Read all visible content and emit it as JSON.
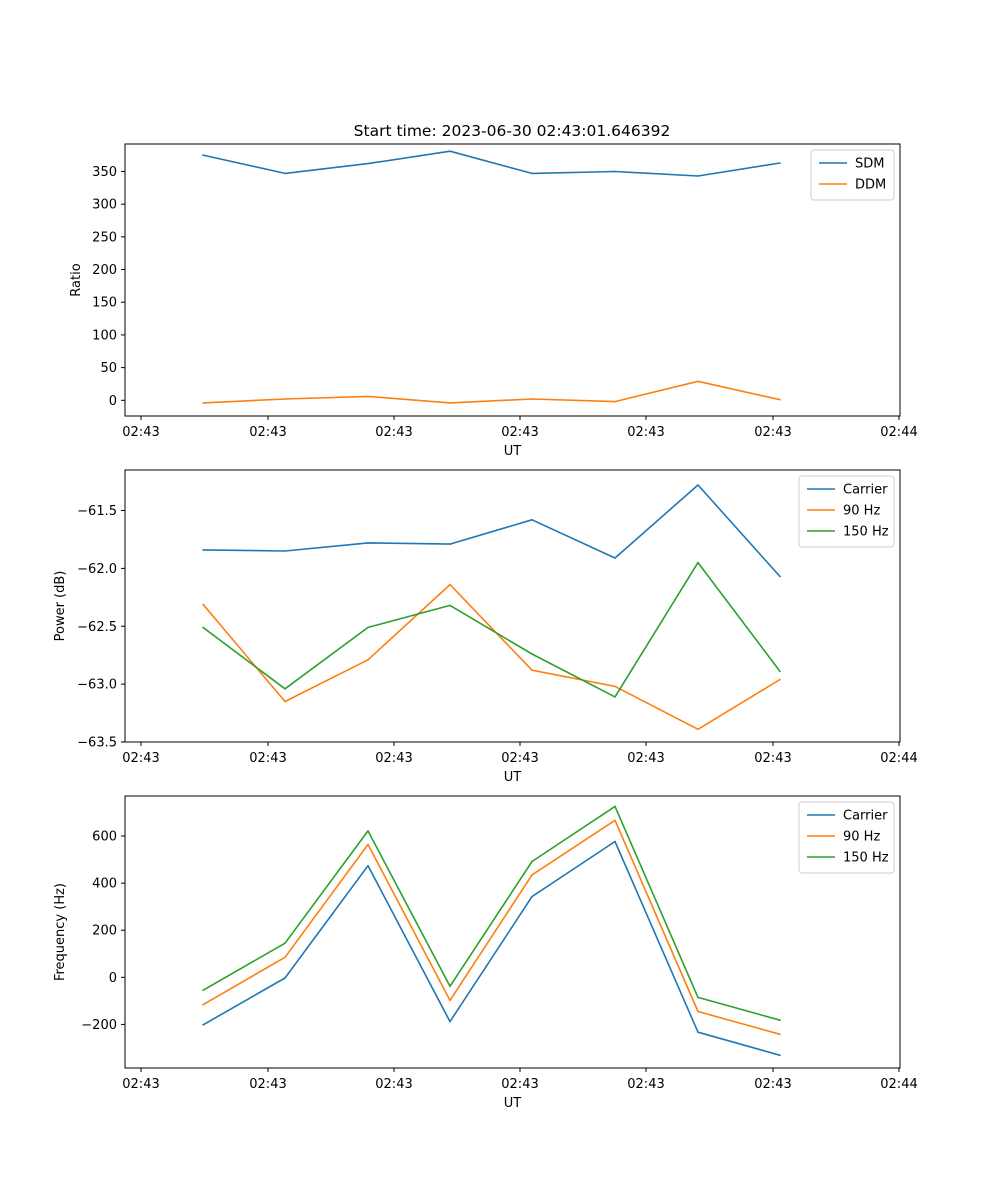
{
  "figure_title": "Start time: 2023-06-30 02:43:01.646392",
  "colors": {
    "blue": "#1f77b4",
    "orange": "#ff7f0e",
    "green": "#2ca02c"
  },
  "chart_data": [
    {
      "type": "line",
      "title": "Start time: 2023-06-30 02:43:01.646392",
      "xlabel": "UT",
      "ylabel": "Ratio",
      "xticks": [
        "02:43",
        "02:43",
        "02:43",
        "02:43",
        "02:43",
        "02:43",
        "02:43"
      ],
      "xticks_extra_right": "02:44",
      "yticks": [
        0,
        50,
        100,
        150,
        200,
        250,
        300,
        350
      ],
      "ylim": [
        -24,
        392
      ],
      "legend_location": "upper right",
      "x": [
        1,
        2,
        3,
        4,
        5,
        6,
        7,
        8
      ],
      "series": [
        {
          "name": "SDM",
          "color": "#1f77b4",
          "values": [
            375,
            347,
            362,
            381,
            347,
            350,
            343,
            363
          ]
        },
        {
          "name": "DDM",
          "color": "#ff7f0e",
          "values": [
            -4,
            2,
            6,
            -4,
            2,
            -2,
            29,
            1
          ]
        }
      ]
    },
    {
      "type": "line",
      "xlabel": "UT",
      "ylabel": "Power (dB)",
      "xticks": [
        "02:43",
        "02:43",
        "02:43",
        "02:43",
        "02:43",
        "02:43",
        "02:43"
      ],
      "xticks_extra_right": "02:44",
      "yticks": [
        -63.5,
        -63.0,
        -62.5,
        -62.0,
        -61.5
      ],
      "ytick_labels": [
        "−63.5",
        "−63.0",
        "−62.5",
        "−62.0",
        "−61.5"
      ],
      "ylim": [
        -63.5,
        -61.15
      ],
      "legend_location": "upper right",
      "x": [
        1,
        2,
        3,
        4,
        5,
        6,
        7,
        8
      ],
      "series": [
        {
          "name": "Carrier",
          "color": "#1f77b4",
          "values": [
            -61.84,
            -61.85,
            -61.78,
            -61.79,
            -61.58,
            -61.91,
            -61.28,
            -62.07
          ]
        },
        {
          "name": "90 Hz",
          "color": "#ff7f0e",
          "values": [
            -62.31,
            -63.15,
            -62.79,
            -62.14,
            -62.88,
            -63.02,
            -63.39,
            -62.96
          ]
        },
        {
          "name": "150 Hz",
          "color": "#2ca02c",
          "values": [
            -62.51,
            -63.04,
            -62.51,
            -62.32,
            -62.74,
            -63.11,
            -61.95,
            -62.89
          ]
        }
      ]
    },
    {
      "type": "line",
      "xlabel": "UT",
      "ylabel": "Frequency (Hz)",
      "xticks": [
        "02:43",
        "02:43",
        "02:43",
        "02:43",
        "02:43",
        "02:43",
        "02:43"
      ],
      "xticks_extra_right": "02:44",
      "yticks": [
        -200,
        0,
        200,
        400,
        600
      ],
      "ytick_labels": [
        "−200",
        "0",
        "200",
        "400",
        "600"
      ],
      "ylim": [
        -385,
        770
      ],
      "legend_location": "upper right",
      "x": [
        1,
        2,
        3,
        4,
        5,
        6,
        7,
        8
      ],
      "series": [
        {
          "name": "Carrier",
          "color": "#1f77b4",
          "values": [
            -202,
            -3,
            474,
            -188,
            343,
            577,
            -233,
            -331
          ]
        },
        {
          "name": "90 Hz",
          "color": "#ff7f0e",
          "values": [
            -116,
            85,
            564,
            -98,
            435,
            667,
            -145,
            -242
          ]
        },
        {
          "name": "150 Hz",
          "color": "#2ca02c",
          "values": [
            -55,
            145,
            622,
            -38,
            492,
            726,
            -85,
            -182
          ]
        }
      ]
    }
  ]
}
